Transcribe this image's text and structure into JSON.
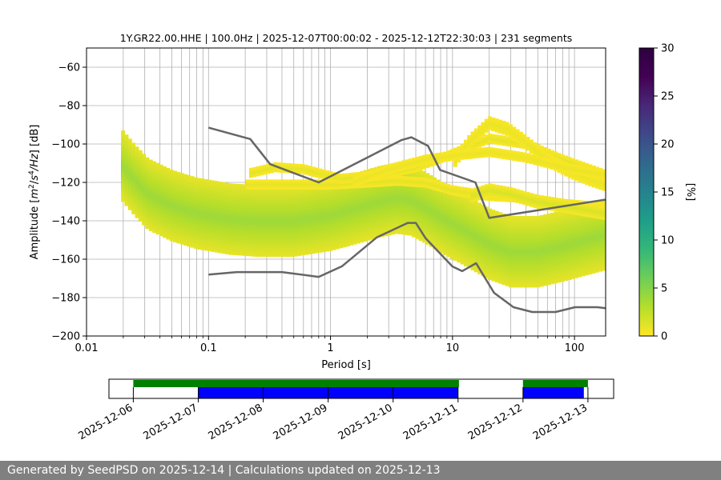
{
  "chart_data": [
    {
      "type": "heatmap",
      "title": "1Y.GR22.00.HHE | 100.0Hz | 2025-12-07T00:00:02 - 2025-12-12T22:30:03 | 231 segments",
      "xlabel": "Period [s]",
      "ylabel": "Amplitude [$m^2/s^4/Hz$] [dB]",
      "x_scale": "log",
      "xlim": [
        0.01,
        180
      ],
      "ylim": [
        -200,
        -50
      ],
      "x_ticks": [
        {
          "value": 0.01,
          "label": "0.01"
        },
        {
          "value": 0.1,
          "label": "0.1"
        },
        {
          "value": 1,
          "label": "1"
        },
        {
          "value": 10,
          "label": "10"
        },
        {
          "value": 100,
          "label": "100"
        }
      ],
      "y_ticks": [
        {
          "value": -60,
          "label": "−60"
        },
        {
          "value": -80,
          "label": "−80"
        },
        {
          "value": -100,
          "label": "−100"
        },
        {
          "value": -120,
          "label": "−120"
        },
        {
          "value": -140,
          "label": "−140"
        },
        {
          "value": -160,
          "label": "−160"
        },
        {
          "value": -180,
          "label": "−180"
        },
        {
          "value": -200,
          "label": "−200"
        }
      ],
      "grid": true,
      "colormap": "viridis_r",
      "colorbar": {
        "label": "[%]",
        "range": [
          0,
          30
        ],
        "ticks": [
          {
            "value": 0,
            "label": "0"
          },
          {
            "value": 5,
            "label": "5"
          },
          {
            "value": 10,
            "label": "10"
          },
          {
            "value": 15,
            "label": "15"
          },
          {
            "value": 20,
            "label": "20"
          },
          {
            "value": 25,
            "label": "25"
          },
          {
            "value": 30,
            "label": "30"
          }
        ]
      },
      "noise_model_color": "#666666",
      "nhnm": {
        "period": [
          0.1,
          0.22,
          0.32,
          0.8,
          3.8,
          4.6,
          6.3,
          7.9,
          15.4,
          20,
          354.8
        ],
        "db": [
          -91.5,
          -97.4,
          -110.5,
          -120,
          -98,
          -96.5,
          -101,
          -113.5,
          -120,
          -138.5,
          -126
        ]
      },
      "nlnm": {
        "period": [
          0.1,
          0.17,
          0.4,
          0.8,
          1.24,
          2.4,
          4.3,
          5,
          6,
          10,
          12,
          15.6,
          21.9,
          31.6,
          45,
          70,
          101,
          154,
          328
        ],
        "db": [
          -168,
          -166.7,
          -166.7,
          -169.2,
          -163.7,
          -148.6,
          -141.1,
          -141.1,
          -149,
          -163.8,
          -166.2,
          -162.1,
          -177.5,
          -185,
          -187.5,
          -187.5,
          -185,
          -185,
          -187.5
        ]
      },
      "psd_bands": [
        {
          "period": [
            0.019,
            0.025,
            0.032,
            0.05,
            0.08,
            0.15,
            0.25,
            0.5,
            1.0,
            1.5,
            2.5,
            3.5,
            4.5,
            6,
            8,
            12,
            20,
            30,
            50,
            80,
            120,
            180
          ],
          "db": [
            -111,
            -120,
            -127,
            -133,
            -137,
            -140,
            -143,
            -144,
            -141,
            -137,
            -131,
            -128,
            -129,
            -136,
            -143,
            -148,
            -151,
            -152,
            -151,
            -150,
            -149,
            -148
          ],
          "width": 4,
          "level": 16
        },
        {
          "period": [
            0.019,
            0.025,
            0.032,
            0.05,
            0.08,
            0.15,
            0.25,
            0.5,
            1.0,
            1.5,
            2.5,
            3.5,
            4.5,
            6,
            8,
            12,
            20,
            30,
            50,
            80,
            120,
            180
          ],
          "db": [
            -111,
            -120,
            -127,
            -133,
            -137,
            -140,
            -143,
            -144,
            -141,
            -137,
            -131,
            -128,
            -129,
            -136,
            -143,
            -148,
            -151,
            -152,
            -151,
            -150,
            -149,
            -148
          ],
          "width": 11,
          "level": 9
        },
        {
          "period": [
            0.019,
            0.025,
            0.032,
            0.05,
            0.08,
            0.15,
            0.25,
            0.5,
            1.0,
            1.5,
            2.5,
            3.5,
            4.5,
            6,
            8,
            12,
            20,
            30,
            50,
            80,
            120,
            180
          ],
          "db": [
            -110,
            -119,
            -126,
            -132,
            -136,
            -139,
            -140,
            -140,
            -137,
            -134,
            -130,
            -128,
            -129,
            -133,
            -138,
            -144,
            -152,
            -156,
            -156,
            -153,
            -150,
            -147
          ],
          "width": 18,
          "level": 4
        },
        {
          "period": [
            0.2,
            0.3,
            0.5,
            1.0,
            2.0,
            3.5,
            6,
            10,
            20,
            40,
            80,
            180
          ],
          "db": [
            -121,
            -121,
            -121,
            -121,
            -120,
            -119,
            -120,
            -124,
            -127,
            -128,
            -131,
            -133
          ],
          "width": 2,
          "level": 1
        },
        {
          "period": [
            0.22,
            0.35,
            0.6,
            1.2,
            2.5,
            5,
            10,
            20,
            40,
            80,
            180
          ],
          "db": [
            -115,
            -112,
            -113,
            -118,
            -116,
            -112,
            -105,
            -97,
            -100,
            -108,
            -116
          ],
          "width": 2,
          "level": 1
        },
        {
          "period": [
            10,
            14,
            20,
            28,
            40,
            60,
            90,
            130,
            180
          ],
          "db": [
            -110,
            -98,
            -89,
            -92,
            -99,
            -108,
            -114,
            -118,
            -121
          ],
          "width": 3,
          "level": 0.8
        },
        {
          "period": [
            1.5,
            3,
            6,
            10,
            20,
            40,
            80,
            180
          ],
          "db": [
            -120,
            -113,
            -108,
            -106,
            -104,
            -107,
            -112,
            -116
          ],
          "width": 2,
          "level": 0.8
        },
        {
          "period": [
            14,
            20,
            30,
            50,
            80,
            120,
            180
          ],
          "db": [
            -127,
            -124,
            -126,
            -130,
            -132,
            -134,
            -136
          ],
          "width": 3,
          "level": 1.5
        }
      ]
    },
    {
      "type": "timeline",
      "tick_labels": [
        "2025-12-06",
        "2025-12-07",
        "2025-12-08",
        "2025-12-09",
        "2025-12-10",
        "2025-12-11",
        "2025-12-12",
        "2025-12-13"
      ],
      "range": [
        "2025-12-05T15:00",
        "2025-12-13T09:30"
      ],
      "available_color": "#008000",
      "processed_color": "#0000ff",
      "available": [
        [
          "2025-12-06T00:00",
          "2025-12-11T00:20"
        ],
        [
          "2025-12-12T00:00",
          "2025-12-13T00:00"
        ]
      ],
      "processed": [
        [
          "2025-12-07T00:00",
          "2025-12-11T00:00"
        ],
        [
          "2025-12-12T00:00",
          "2025-12-12T22:30"
        ]
      ]
    }
  ],
  "footer": {
    "text": "Generated by SeedPSD on 2025-12-14 | Calculations updated on 2025-12-13"
  }
}
